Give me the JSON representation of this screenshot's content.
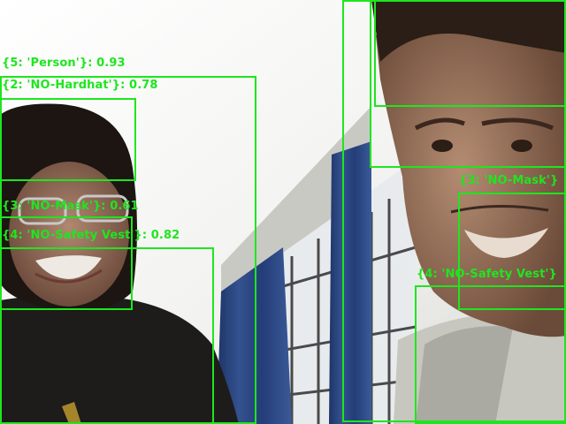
{
  "theme": {
    "box_color": "#1ee61e",
    "label_color": "#1ee61e"
  },
  "detections": [
    {
      "label": "{5: 'Person'}: 0.93"
    },
    {
      "label": "{2: 'NO-Hardhat'}: 0.78"
    },
    {
      "label": "{3: 'NO-Mask'}: 0.61"
    },
    {
      "label": "{4: 'NO-Safety Vest'}: 0.82"
    },
    {
      "label": ""
    },
    {
      "label": ""
    },
    {
      "label": "{3: 'NO-Mask'}"
    },
    {
      "label": "{4: 'NO-Safety Vest'}"
    }
  ]
}
